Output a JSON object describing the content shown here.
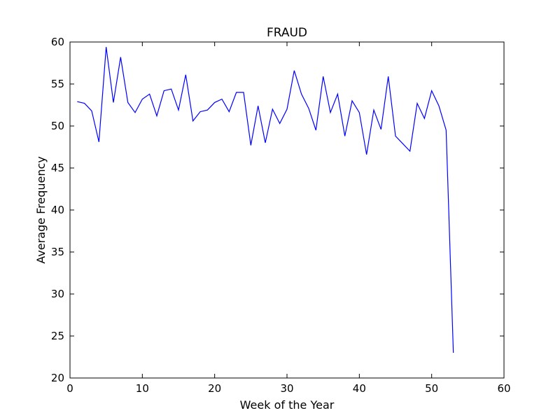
{
  "chart_data": {
    "type": "line",
    "title": "FRAUD",
    "xlabel": "Week of the Year",
    "ylabel": "Average Frequency",
    "xlim": [
      0,
      60
    ],
    "ylim": [
      20,
      60
    ],
    "xticks": [
      0,
      10,
      20,
      30,
      40,
      50,
      60
    ],
    "yticks": [
      20,
      25,
      30,
      35,
      40,
      45,
      50,
      55,
      60
    ],
    "grid": false,
    "line_color": "#0000ff",
    "x": [
      1,
      2,
      3,
      4,
      5,
      6,
      7,
      8,
      9,
      10,
      11,
      12,
      13,
      14,
      15,
      16,
      17,
      18,
      19,
      20,
      21,
      22,
      23,
      24,
      25,
      26,
      27,
      28,
      29,
      30,
      31,
      32,
      33,
      34,
      35,
      36,
      37,
      38,
      39,
      40,
      41,
      42,
      43,
      44,
      45,
      46,
      47,
      48,
      49,
      50,
      51,
      52,
      53
    ],
    "y": [
      52.9,
      52.7,
      51.8,
      48.1,
      59.4,
      52.8,
      58.2,
      52.8,
      51.6,
      53.2,
      53.8,
      51.2,
      54.2,
      54.4,
      51.9,
      56.1,
      50.6,
      51.7,
      51.9,
      52.8,
      53.2,
      51.7,
      54.0,
      54.0,
      47.7,
      52.4,
      48.0,
      52.0,
      50.3,
      52.0,
      56.6,
      53.8,
      52.1,
      49.5,
      55.9,
      51.6,
      53.8,
      48.8,
      53.0,
      51.6,
      46.6,
      51.9,
      49.6,
      55.9,
      48.8,
      47.9,
      47.0,
      52.7,
      50.9,
      54.2,
      52.4,
      49.5,
      23.0
    ]
  }
}
